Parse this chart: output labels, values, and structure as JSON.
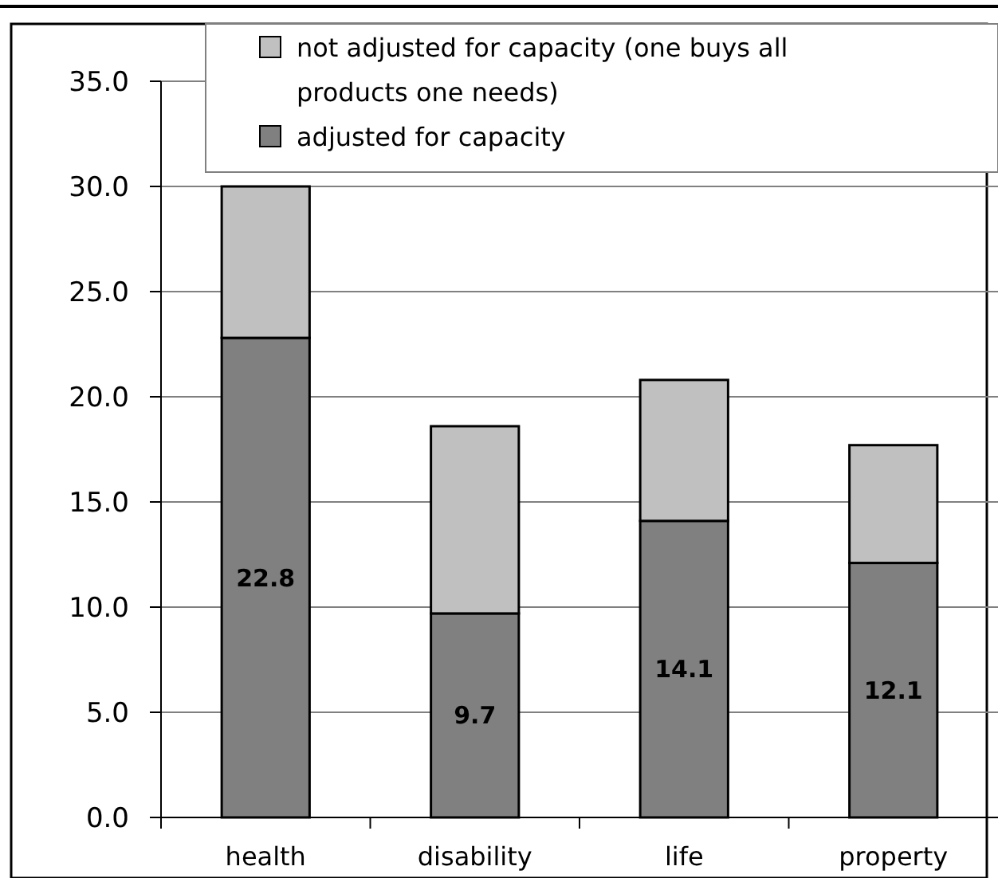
{
  "chart_data": {
    "type": "bar",
    "stacked": true,
    "categories": [
      "health",
      "disability",
      "life",
      "property"
    ],
    "series": [
      {
        "name": "adjusted for capacity",
        "color": "#808080",
        "values": [
          22.8,
          9.7,
          14.1,
          12.1
        ],
        "value_labels": [
          "22.8",
          "9.7",
          "14.1",
          "12.1"
        ]
      },
      {
        "name": "not adjusted for capacity (one buys all products one needs)",
        "color": "#c0c0c0",
        "values": [
          7.2,
          8.9,
          6.7,
          5.6
        ]
      }
    ],
    "ylim": [
      0,
      35
    ],
    "yticks": [
      {
        "value": 0,
        "label": "0.0"
      },
      {
        "value": 5,
        "label": "5.0"
      },
      {
        "value": 10,
        "label": "10.0"
      },
      {
        "value": 15,
        "label": "15.0"
      },
      {
        "value": 20,
        "label": "20.0"
      },
      {
        "value": 25,
        "label": "25.0"
      },
      {
        "value": 30,
        "label": "30.0"
      },
      {
        "value": 35,
        "label": "35.0"
      }
    ],
    "grid": "y",
    "legend": "top"
  }
}
